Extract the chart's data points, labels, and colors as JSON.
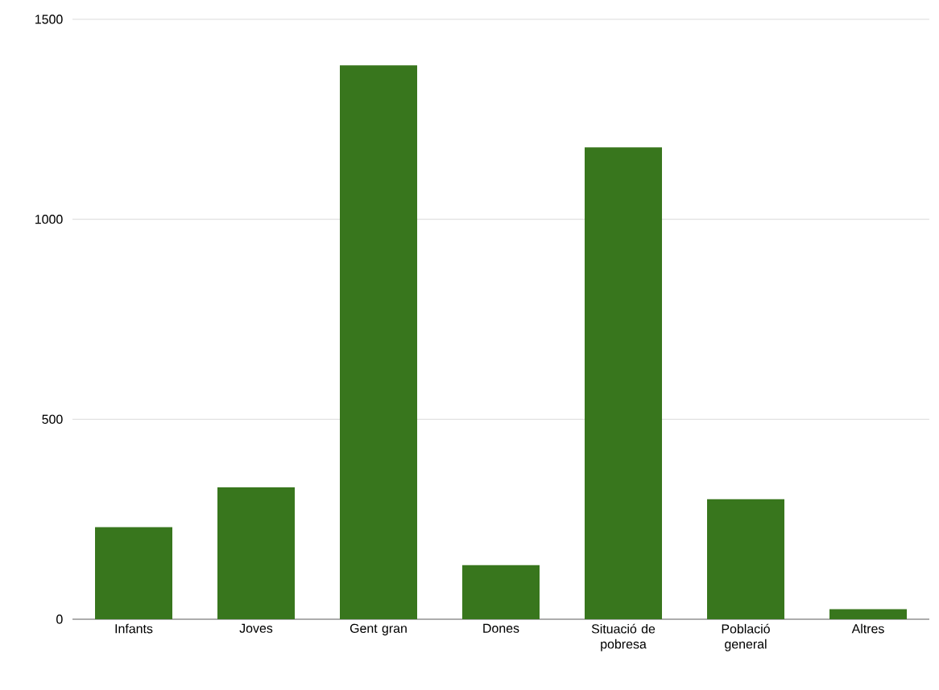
{
  "chart_data": {
    "type": "bar",
    "categories": [
      "Infants",
      "Joves",
      "Gent gran",
      "Dones",
      "Situació de pobresa",
      "Població general",
      "Altres"
    ],
    "values": [
      230,
      330,
      1385,
      135,
      1180,
      300,
      25
    ],
    "color": "#38761d",
    "ylim": [
      0,
      1500
    ],
    "yticks": [
      0,
      500,
      1000,
      1500
    ],
    "grid": "y"
  }
}
